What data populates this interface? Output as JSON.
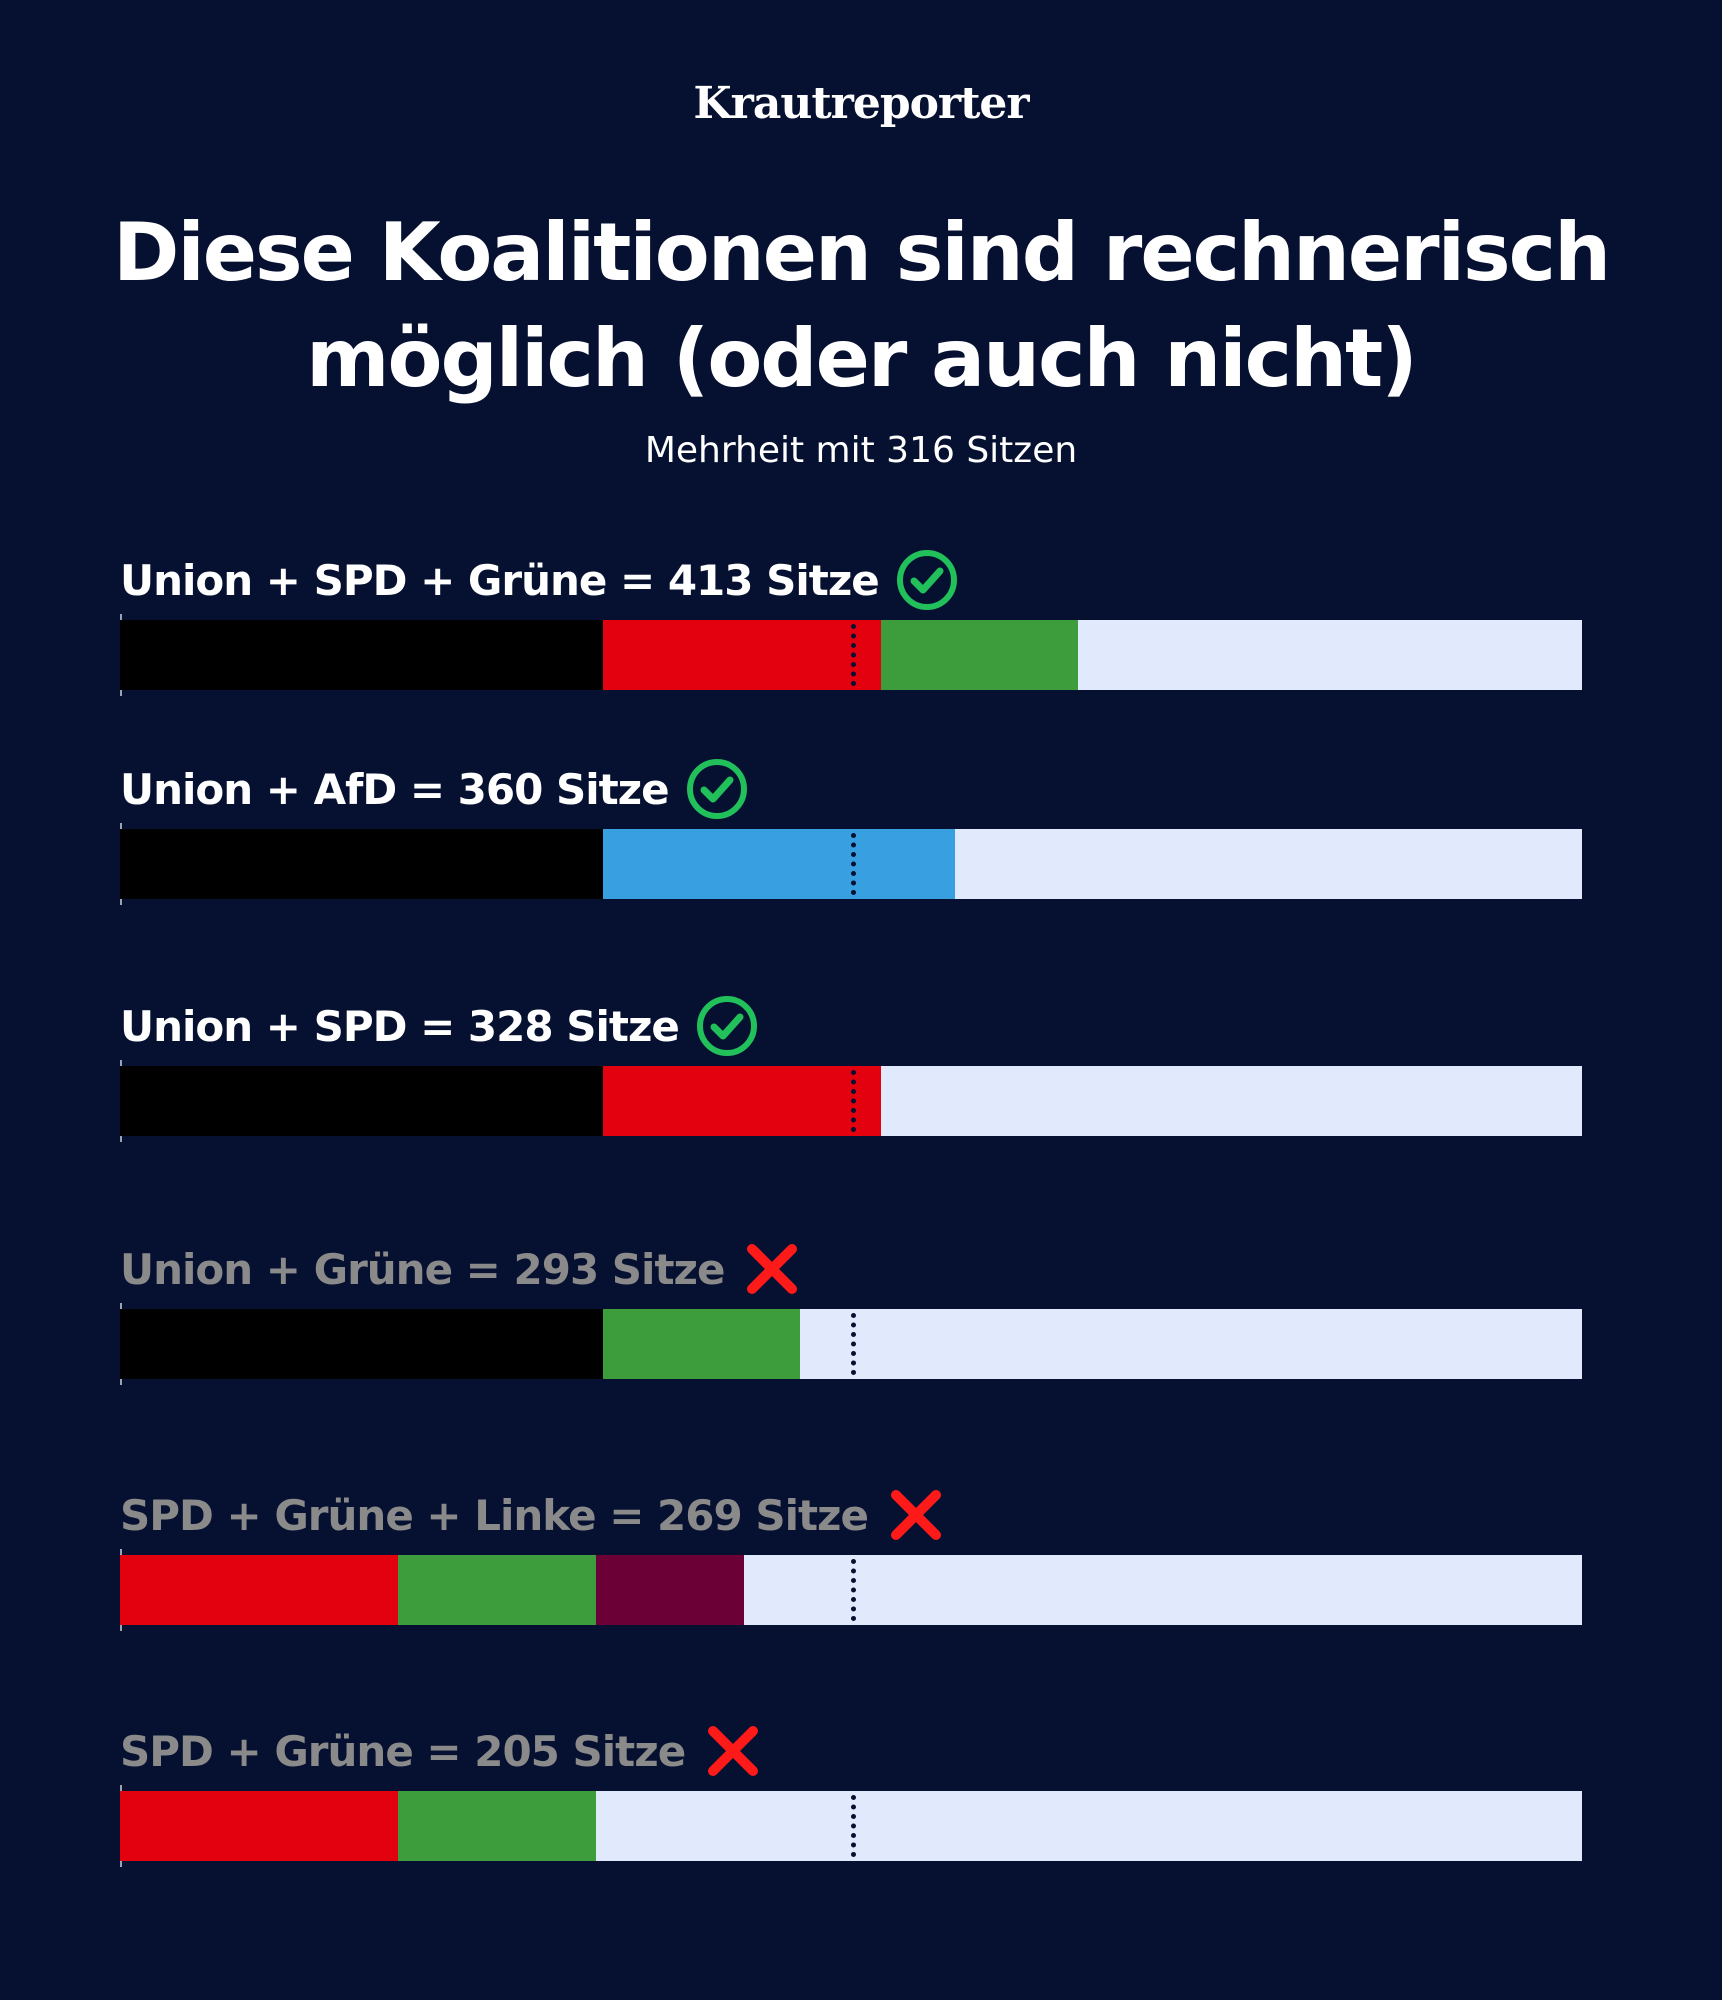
{
  "brand": "Krautreporter",
  "title_lines": [
    "Diese Koalitionen sind rechnerisch",
    "möglich (oder auch nicht)"
  ],
  "subtitle": "Mehrheit mit 316 Sitzen",
  "chart_data": {
    "type": "bar",
    "orientation": "horizontal-stacked",
    "total_seats": 630,
    "majority": 316,
    "colors": {
      "Union": "#000000",
      "SPD": "#e3000f",
      "Grüne": "#3d9c3b",
      "AfD": "#389fe0",
      "Linke": "#6a0035",
      "remaining": "#e1e9fd",
      "check": "#21c05a",
      "cross": "#ff1a1a"
    },
    "coalitions": [
      {
        "label": "Union + SPD + Grüne = 413 Sitze",
        "total": 413,
        "majority": true,
        "parts": [
          {
            "party": "Union",
            "seats": 208
          },
          {
            "party": "SPD",
            "seats": 120
          },
          {
            "party": "Grüne",
            "seats": 85
          }
        ]
      },
      {
        "label": "Union + AfD = 360 Sitze",
        "total": 360,
        "majority": true,
        "parts": [
          {
            "party": "Union",
            "seats": 208
          },
          {
            "party": "AfD",
            "seats": 152
          }
        ]
      },
      {
        "label": "Union + SPD = 328 Sitze",
        "total": 328,
        "majority": true,
        "parts": [
          {
            "party": "Union",
            "seats": 208
          },
          {
            "party": "SPD",
            "seats": 120
          }
        ]
      },
      {
        "label": "Union + Grüne = 293 Sitze",
        "total": 293,
        "majority": false,
        "parts": [
          {
            "party": "Union",
            "seats": 208
          },
          {
            "party": "Grüne",
            "seats": 85
          }
        ]
      },
      {
        "label": "SPD + Grüne + Linke = 269 Sitze",
        "total": 269,
        "majority": false,
        "parts": [
          {
            "party": "SPD",
            "seats": 120
          },
          {
            "party": "Grüne",
            "seats": 85
          },
          {
            "party": "Linke",
            "seats": 64
          }
        ]
      },
      {
        "label": "SPD + Grüne = 205 Sitze",
        "total": 205,
        "majority": false,
        "parts": [
          {
            "party": "SPD",
            "seats": 120
          },
          {
            "party": "Grüne",
            "seats": 85
          }
        ]
      }
    ]
  }
}
